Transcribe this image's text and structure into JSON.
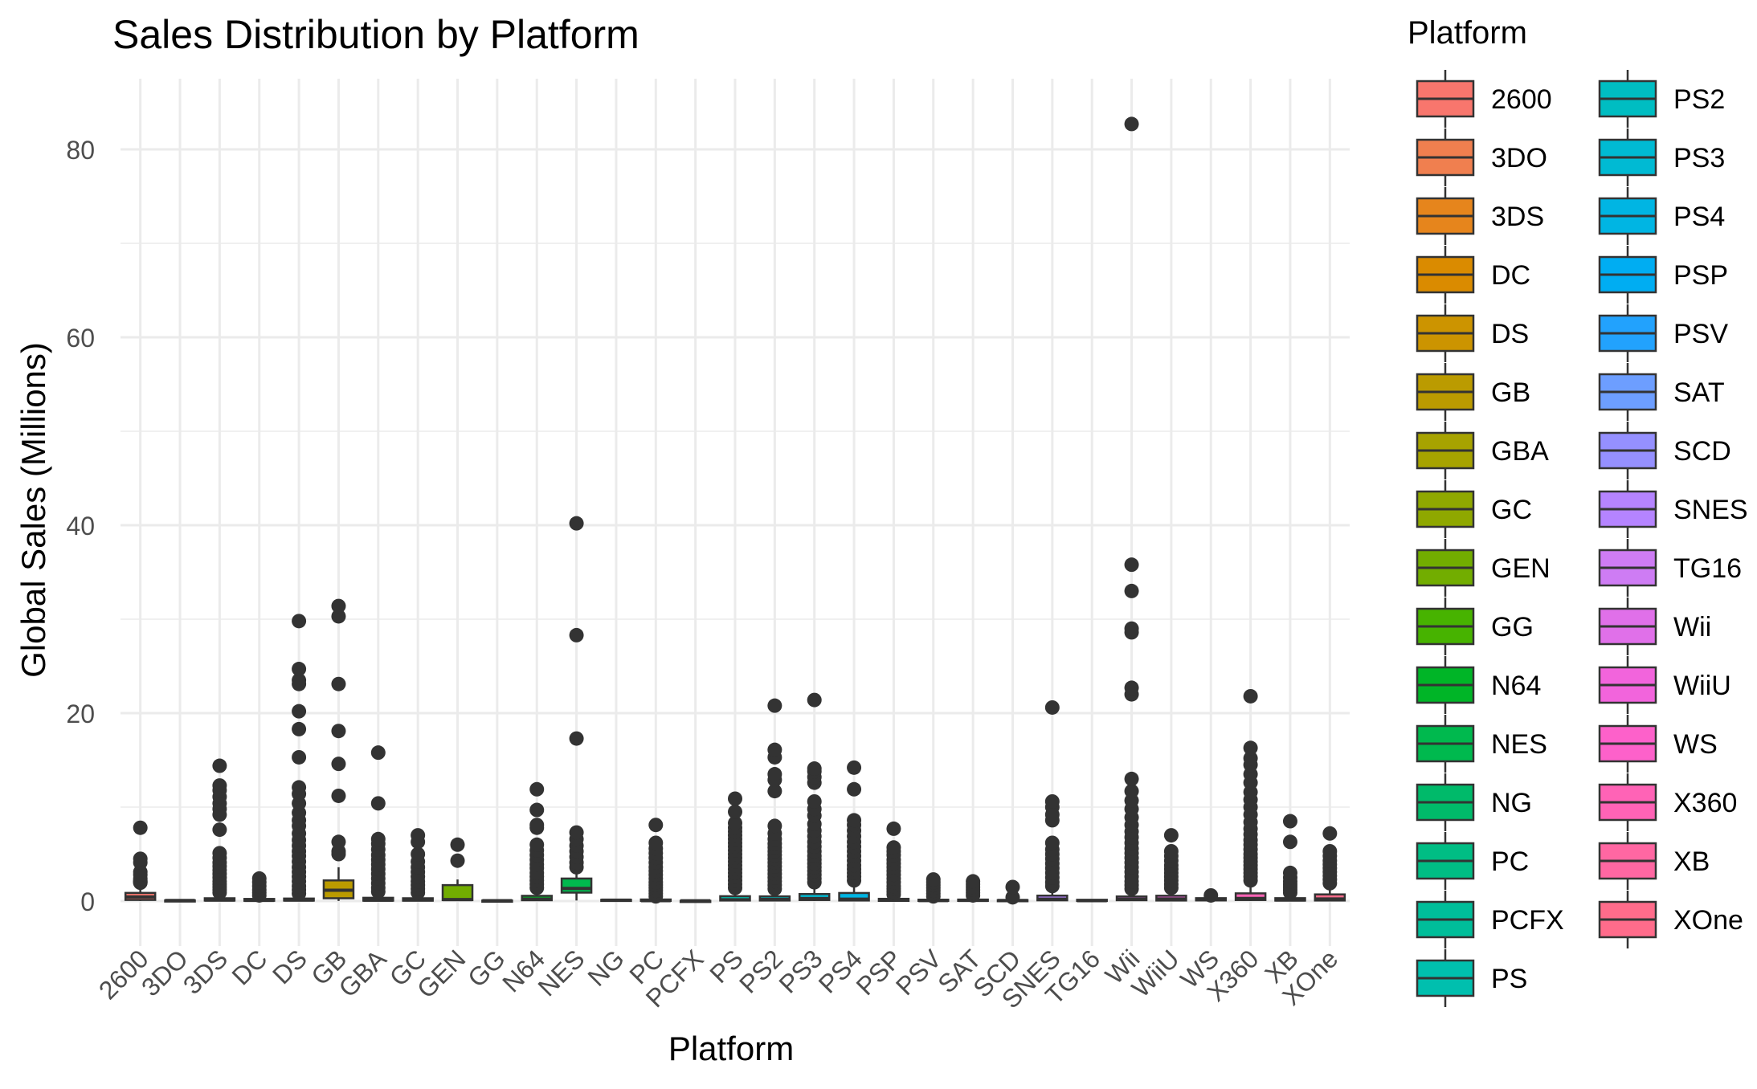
{
  "chart_data": {
    "type": "box",
    "title": "Sales Distribution by Platform",
    "xlabel": "Platform",
    "ylabel": "Global Sales (Millions)",
    "ylim": [
      -5,
      87
    ],
    "yticks": [
      0,
      20,
      40,
      60,
      80
    ],
    "grid": true,
    "legend": {
      "title": "Platform",
      "position": "right",
      "columns": 2
    },
    "categories": [
      "2600",
      "3DO",
      "3DS",
      "DC",
      "DS",
      "GB",
      "GBA",
      "GC",
      "GEN",
      "GG",
      "N64",
      "NES",
      "NG",
      "PC",
      "PCFX",
      "PS",
      "PS2",
      "PS3",
      "PS4",
      "PSP",
      "PSV",
      "SAT",
      "SCD",
      "SNES",
      "TG16",
      "Wii",
      "WiiU",
      "WS",
      "X360",
      "XB",
      "XOne"
    ],
    "colors": [
      "#F8766D",
      "#F07F4F",
      "#E6851C",
      "#DA8B00",
      "#CC9400",
      "#BB9B00",
      "#A7A300",
      "#8FA800",
      "#72AD00",
      "#47B300",
      "#00B527",
      "#00B94E",
      "#00BA6A",
      "#00BD84",
      "#00BE9A",
      "#00BFAE",
      "#00BDC2",
      "#00BAD3",
      "#00B5E3",
      "#00ADF2",
      "#22A2FD",
      "#6D9EFF",
      "#9590FF",
      "#B584FF",
      "#CE7CF4",
      "#E070E9",
      "#F264DC",
      "#FD61CA",
      "#FF63B6",
      "#FF67A2",
      "#FF6C8B"
    ],
    "boxes": [
      {
        "q1": 0.12,
        "median": 0.44,
        "q3": 0.87,
        "lower": 0.01,
        "upper": 1.9,
        "outliers": [
          1.95,
          2.0,
          2.1,
          2.2,
          2.4,
          2.8,
          3.1,
          4.1,
          4.5,
          7.8
        ]
      },
      {
        "q1": 0.02,
        "median": 0.06,
        "q3": 0.08,
        "lower": 0.02,
        "upper": 0.14,
        "outliers": []
      },
      {
        "q1": 0.05,
        "median": 0.11,
        "q3": 0.3,
        "lower": 0.01,
        "upper": 0.7,
        "outliers": [
          0.9,
          1.2,
          1.5,
          1.8,
          2.1,
          2.5,
          2.9,
          3.3,
          3.7,
          4.1,
          4.6,
          5.1,
          7.6,
          9.2,
          9.8,
          10.4,
          11.1,
          11.8,
          12.3,
          14.4
        ]
      },
      {
        "q1": 0.03,
        "median": 0.07,
        "q3": 0.23,
        "lower": 0.02,
        "upper": 0.5,
        "outliers": [
          0.6,
          0.9,
          1.2,
          1.6,
          2.0,
          2.4
        ]
      },
      {
        "q1": 0.05,
        "median": 0.11,
        "q3": 0.27,
        "lower": 0.01,
        "upper": 0.6,
        "outliers": [
          0.8,
          1.2,
          1.6,
          2.1,
          2.6,
          3.1,
          3.6,
          4.2,
          4.8,
          5.3,
          5.9,
          6.5,
          7.2,
          8.0,
          8.6,
          9.4,
          10.4,
          11.4,
          12.1,
          15.3,
          18.3,
          20.2,
          23.1,
          23.5,
          24.7,
          29.8
        ]
      },
      {
        "q1": 0.3,
        "median": 1.15,
        "q3": 2.2,
        "lower": 0.01,
        "upper": 3.6,
        "outliers": [
          5.0,
          5.3,
          6.3,
          11.2,
          14.6,
          18.1,
          23.1,
          30.3,
          31.4
        ]
      },
      {
        "q1": 0.04,
        "median": 0.1,
        "q3": 0.35,
        "lower": 0.01,
        "upper": 0.8,
        "outliers": [
          1.0,
          1.4,
          1.9,
          2.4,
          2.9,
          3.4,
          3.9,
          4.4,
          4.9,
          5.5,
          6.1,
          6.6,
          10.4,
          15.8
        ]
      },
      {
        "q1": 0.04,
        "median": 0.12,
        "q3": 0.3,
        "lower": 0.01,
        "upper": 0.7,
        "outliers": [
          0.9,
          1.3,
          1.7,
          2.1,
          2.6,
          3.1,
          3.6,
          4.2,
          5.0,
          6.3,
          7.0
        ]
      },
      {
        "q1": 0.1,
        "median": 0.16,
        "q3": 1.7,
        "lower": 0.03,
        "upper": 2.3,
        "outliers": [
          4.3,
          6.0
        ]
      },
      {
        "q1": 0.02,
        "median": 0.04,
        "q3": 0.06,
        "lower": 0.02,
        "upper": 0.06,
        "outliers": []
      },
      {
        "q1": 0.09,
        "median": 0.2,
        "q3": 0.56,
        "lower": 0.01,
        "upper": 1.2,
        "outliers": [
          1.4,
          1.8,
          2.2,
          2.6,
          3.0,
          3.5,
          3.9,
          4.4,
          4.9,
          5.4,
          6.0,
          7.8,
          8.1,
          9.7,
          11.9
        ]
      },
      {
        "q1": 0.9,
        "median": 1.35,
        "q3": 2.4,
        "lower": 0.06,
        "upper": 3.0,
        "outliers": [
          3.6,
          4.1,
          4.7,
          5.3,
          5.9,
          6.6,
          7.3,
          17.3,
          28.3,
          40.2
        ]
      },
      {
        "q1": 0.04,
        "median": 0.1,
        "q3": 0.14,
        "lower": 0.02,
        "upper": 0.2,
        "outliers": []
      },
      {
        "q1": 0.02,
        "median": 0.04,
        "q3": 0.17,
        "lower": 0.01,
        "upper": 0.4,
        "outliers": [
          0.5,
          0.8,
          1.1,
          1.4,
          1.7,
          2.0,
          2.4,
          2.8,
          3.2,
          3.6,
          4.1,
          4.6,
          5.1,
          5.6,
          6.2,
          8.1
        ]
      },
      {
        "q1": 0.03,
        "median": 0.03,
        "q3": 0.03,
        "lower": 0.03,
        "upper": 0.03,
        "outliers": []
      },
      {
        "q1": 0.06,
        "median": 0.14,
        "q3": 0.52,
        "lower": 0.01,
        "upper": 1.2,
        "outliers": [
          1.4,
          1.8,
          2.2,
          2.6,
          3.0,
          3.4,
          3.8,
          4.2,
          4.6,
          5.0,
          5.4,
          5.8,
          6.2,
          6.6,
          7.0,
          7.4,
          7.8,
          8.3,
          9.5,
          10.9
        ]
      },
      {
        "q1": 0.06,
        "median": 0.17,
        "q3": 0.5,
        "lower": 0.01,
        "upper": 1.1,
        "outliers": [
          1.3,
          1.7,
          2.1,
          2.5,
          2.9,
          3.3,
          3.7,
          4.1,
          4.5,
          4.9,
          5.3,
          5.7,
          6.1,
          6.6,
          7.2,
          8.0,
          11.7,
          12.9,
          13.5,
          15.3,
          16.1,
          20.8
        ]
      },
      {
        "q1": 0.11,
        "median": 0.27,
        "q3": 0.75,
        "lower": 0.01,
        "upper": 1.7,
        "outliers": [
          2.0,
          2.4,
          2.8,
          3.2,
          3.6,
          4.0,
          4.4,
          4.8,
          5.3,
          5.8,
          6.3,
          6.9,
          7.5,
          8.2,
          9.1,
          9.8,
          10.6,
          12.6,
          13.2,
          13.8,
          14.1,
          21.4
        ]
      },
      {
        "q1": 0.06,
        "median": 0.2,
        "q3": 0.86,
        "lower": 0.01,
        "upper": 1.9,
        "outliers": [
          2.2,
          2.6,
          3.0,
          3.4,
          3.8,
          4.3,
          4.8,
          5.3,
          5.8,
          6.3,
          6.9,
          7.5,
          8.1,
          8.6,
          11.9,
          14.2
        ]
      },
      {
        "q1": 0.02,
        "median": 0.09,
        "q3": 0.24,
        "lower": 0.01,
        "upper": 0.55,
        "outliers": [
          0.7,
          1.0,
          1.3,
          1.6,
          2.0,
          2.4,
          2.8,
          3.2,
          3.6,
          4.0,
          4.4,
          4.9,
          5.3,
          5.7,
          7.7
        ]
      },
      {
        "q1": 0.02,
        "median": 0.05,
        "q3": 0.15,
        "lower": 0.01,
        "upper": 0.35,
        "outliers": [
          0.5,
          0.8,
          1.1,
          1.4,
          1.7,
          2.0,
          2.3
        ]
      },
      {
        "q1": 0.02,
        "median": 0.08,
        "q3": 0.16,
        "lower": 0.01,
        "upper": 0.4,
        "outliers": [
          0.6,
          0.9,
          1.2,
          1.5,
          1.8,
          2.1
        ]
      },
      {
        "q1": 0.05,
        "median": 0.06,
        "q3": 0.11,
        "lower": 0.03,
        "upper": 0.14,
        "outliers": [
          0.4,
          1.5
        ]
      },
      {
        "q1": 0.08,
        "median": 0.2,
        "q3": 0.58,
        "lower": 0.01,
        "upper": 1.3,
        "outliers": [
          1.6,
          2.0,
          2.5,
          3.0,
          3.5,
          4.0,
          4.5,
          5.0,
          5.5,
          6.2,
          8.6,
          9.2,
          10.0,
          10.6,
          20.6
        ]
      },
      {
        "q1": 0.02,
        "median": 0.04,
        "q3": 0.14,
        "lower": 0.02,
        "upper": 0.16,
        "outliers": []
      },
      {
        "q1": 0.09,
        "median": 0.19,
        "q3": 0.49,
        "lower": 0.01,
        "upper": 1.1,
        "outliers": [
          1.3,
          1.7,
          2.1,
          2.6,
          3.1,
          3.6,
          4.1,
          4.6,
          5.1,
          5.6,
          6.2,
          6.8,
          7.4,
          8.1,
          8.9,
          9.8,
          10.7,
          11.7,
          13.0,
          22.0,
          22.7,
          28.6,
          29.0,
          33.0,
          35.8,
          82.7
        ]
      },
      {
        "q1": 0.06,
        "median": 0.22,
        "q3": 0.57,
        "lower": 0.01,
        "upper": 1.2,
        "outliers": [
          1.4,
          1.8,
          2.2,
          2.6,
          3.0,
          3.4,
          3.8,
          4.3,
          4.8,
          5.3,
          7.0
        ]
      },
      {
        "q1": 0.07,
        "median": 0.16,
        "q3": 0.31,
        "lower": 0.02,
        "upper": 0.5,
        "outliers": [
          0.6
        ]
      },
      {
        "q1": 0.11,
        "median": 0.28,
        "q3": 0.82,
        "lower": 0.01,
        "upper": 1.9,
        "outliers": [
          2.2,
          2.6,
          3.0,
          3.4,
          3.8,
          4.2,
          4.6,
          5.0,
          5.5,
          6.0,
          6.5,
          7.1,
          7.7,
          8.4,
          9.2,
          10.0,
          10.8,
          11.6,
          12.6,
          13.5,
          14.5,
          15.2,
          16.3,
          21.8
        ]
      },
      {
        "q1": 0.05,
        "median": 0.12,
        "q3": 0.31,
        "lower": 0.01,
        "upper": 0.7,
        "outliers": [
          0.9,
          1.2,
          1.5,
          1.8,
          2.1,
          2.5,
          3.0,
          6.3,
          8.5
        ]
      },
      {
        "q1": 0.06,
        "median": 0.22,
        "q3": 0.71,
        "lower": 0.01,
        "upper": 1.6,
        "outliers": [
          1.9,
          2.3,
          2.7,
          3.1,
          3.5,
          3.9,
          4.3,
          4.8,
          5.3,
          7.2
        ]
      }
    ]
  }
}
